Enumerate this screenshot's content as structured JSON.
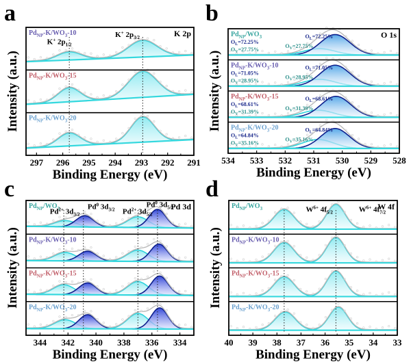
{
  "chart_data": [
    {
      "id": "a",
      "type": "line",
      "panel_letter": "a",
      "title": "K 2p",
      "xlabel": "Binding Energy (eV)",
      "ylabel": "Intensity (a.u.)",
      "xlim": [
        297.4,
        291
      ],
      "xticks": [
        297,
        296,
        295,
        294,
        293,
        292,
        291
      ],
      "reference_lines": [
        295.75,
        292.95
      ],
      "peak_labels": [
        {
          "sup": "+",
          "base": "K",
          "text": " 2p",
          "sub": "1/2",
          "x": 296.6,
          "row": 0,
          "h": 0.62
        },
        {
          "sup": "+",
          "base": "K",
          "text": " 2p",
          "sub": "3/2",
          "x": 294.0,
          "row": 0,
          "h": 0.82
        }
      ],
      "series": [
        {
          "name": "PdNP-K/WO3-10",
          "label_base": "Pd",
          "label_sub": "NP",
          "label_rest": "-K/WO",
          "label_sub2": "3",
          "label_tail": "-10",
          "label_color": "#6a5fb0",
          "baseline": [
            0.15,
            0.33
          ],
          "peaks": [
            {
              "center": 295.75,
              "height": 0.22,
              "width": 0.45,
              "color": "#2fd3dc",
              "fill": "cyan"
            },
            {
              "center": 292.95,
              "height": 0.45,
              "width": 0.55,
              "color": "#2fd3dc",
              "fill": "cyan"
            }
          ]
        },
        {
          "name": "PdNP-K/WO3-15",
          "label_base": "Pd",
          "label_sub": "NP",
          "label_rest": "-K/WO",
          "label_sub2": "3",
          "label_tail": "-15",
          "label_color": "#c2606b",
          "baseline": [
            0.15,
            0.42
          ],
          "peaks": [
            {
              "center": 295.75,
              "height": 0.38,
              "width": 0.42,
              "color": "#2fd3dc",
              "fill": "cyan"
            },
            {
              "center": 292.95,
              "height": 0.7,
              "width": 0.55,
              "color": "#2fd3dc",
              "fill": "cyan"
            }
          ]
        },
        {
          "name": "PdNP-K/WO3-20",
          "label_base": "Pd",
          "label_sub": "NP",
          "label_rest": "-K/WO",
          "label_sub2": "3",
          "label_tail": "-20",
          "label_color": "#6ea3d0",
          "baseline": [
            0.12,
            0.35
          ],
          "peaks": [
            {
              "center": 295.75,
              "height": 0.35,
              "width": 0.42,
              "color": "#2fd3dc",
              "fill": "cyan"
            },
            {
              "center": 292.95,
              "height": 0.68,
              "width": 0.45,
              "color": "#2fd3dc",
              "fill": "cyan"
            }
          ]
        }
      ]
    },
    {
      "id": "b",
      "type": "line",
      "panel_letter": "b",
      "title": "O 1s",
      "xlabel": "Binding Energy (eV)",
      "ylabel": "",
      "xlim": [
        534,
        528
      ],
      "xticks": [
        534,
        533,
        532,
        531,
        530,
        529,
        528
      ],
      "reference_lines": [],
      "series": [
        {
          "name": "PdNP/WO3",
          "label_base": "Pd",
          "label_sub": "NP",
          "label_rest": "/WO",
          "label_sub2": "3",
          "label_tail": "",
          "label_color": "#3aa6a0",
          "OL": "72.25%",
          "OV": "27.75%",
          "baseline": [
            0.08,
            0.08
          ],
          "peaks": [
            {
              "center": 530.8,
              "height": 0.25,
              "width": 0.55,
              "color": "#2fd3dc",
              "fill": "none"
            },
            {
              "center": 530.25,
              "height": 0.8,
              "width": 0.52,
              "color": "#0d1f8c",
              "fill": "blue"
            }
          ]
        },
        {
          "name": "PdNP-K/WO3-10",
          "label_base": "Pd",
          "label_sub": "NP",
          "label_rest": "-K/WO",
          "label_sub2": "3",
          "label_tail": "-10",
          "label_color": "#6a5fb0",
          "OL": "71.05%",
          "OV": "28.95%",
          "baseline": [
            0.08,
            0.08
          ],
          "peaks": [
            {
              "center": 530.8,
              "height": 0.27,
              "width": 0.55,
              "color": "#2fd3dc",
              "fill": "none"
            },
            {
              "center": 530.25,
              "height": 0.82,
              "width": 0.52,
              "color": "#0d1f8c",
              "fill": "blue"
            }
          ]
        },
        {
          "name": "PdNP-K/WO3-15",
          "label_base": "Pd",
          "label_sub": "NP",
          "label_rest": "-K/WO",
          "label_sub2": "3",
          "label_tail": "-15",
          "label_color": "#c2606b",
          "OL": "68.61%",
          "OV": "31.39%",
          "baseline": [
            0.08,
            0.08
          ],
          "peaks": [
            {
              "center": 530.85,
              "height": 0.28,
              "width": 0.55,
              "color": "#2fd3dc",
              "fill": "none"
            },
            {
              "center": 530.22,
              "height": 0.82,
              "width": 0.52,
              "color": "#0d1f8c",
              "fill": "blue"
            }
          ]
        },
        {
          "name": "PdNP-K/WO3-20",
          "label_base": "Pd",
          "label_sub": "NP",
          "label_rest": "-K/WO",
          "label_sub2": "3",
          "label_tail": "-20",
          "label_color": "#6ea3d0",
          "OL": "64.84%",
          "OV": "35.16%",
          "baseline": [
            0.08,
            0.08
          ],
          "peaks": [
            {
              "center": 530.85,
              "height": 0.35,
              "width": 0.55,
              "color": "#2fd3dc",
              "fill": "none"
            },
            {
              "center": 530.25,
              "height": 0.78,
              "width": 0.5,
              "color": "#0d1f8c",
              "fill": "blue"
            }
          ]
        }
      ]
    },
    {
      "id": "c",
      "type": "line",
      "panel_letter": "c",
      "title": "Pd 3d",
      "xlabel": "Binding Energy (eV)",
      "ylabel": "Intensity (a.u.)",
      "xlim": [
        345,
        333
      ],
      "xticks": [
        344,
        342,
        340,
        338,
        336,
        334
      ],
      "reference_lines": [
        342.3,
        340.9,
        337.0,
        335.6
      ],
      "peak_labels": [
        {
          "sup": "2+",
          "base": "Pd",
          "text": " 3d",
          "sub": "3/2",
          "x": 343.3,
          "row": 0,
          "h": 0.62
        },
        {
          "sup": "0",
          "base": "Pd",
          "text": " 3d",
          "sub": "3/2",
          "x": 340.6,
          "row": 0,
          "h": 0.8
        },
        {
          "sup": "2+",
          "base": "Pd",
          "text": " 3d",
          "sub": "5/2",
          "x": 338.1,
          "row": 0,
          "h": 0.62
        },
        {
          "sup": "0",
          "base": "Pd",
          "text": " 3d",
          "sub": "5/2",
          "x": 336.4,
          "row": 0,
          "h": 0.87
        }
      ],
      "series": [
        {
          "name": "PdNP/WO3",
          "label_base": "Pd",
          "label_sub": "NP",
          "label_rest": "/WO",
          "label_sub2": "3",
          "label_tail": "",
          "label_color": "#3aa6a0",
          "baseline": [
            0.18,
            0.12
          ],
          "peaks": [
            {
              "center": 342.2,
              "height": 0.22,
              "width": 0.75,
              "color": "#2fd3dc",
              "fill": "cyan"
            },
            {
              "center": 340.8,
              "height": 0.4,
              "width": 0.62,
              "color": "#0d1f8c",
              "fill": "blue"
            },
            {
              "center": 337.0,
              "height": 0.38,
              "width": 0.75,
              "color": "#2fd3dc",
              "fill": "cyan"
            },
            {
              "center": 335.6,
              "height": 0.65,
              "width": 0.6,
              "color": "#0d1f8c",
              "fill": "blue"
            }
          ]
        },
        {
          "name": "PdNP-K/WO3-10",
          "label_base": "Pd",
          "label_sub": "NP",
          "label_rest": "-K/WO",
          "label_sub2": "3",
          "label_tail": "-10",
          "label_color": "#6a5fb0",
          "baseline": [
            0.16,
            0.12
          ],
          "peaks": [
            {
              "center": 342.2,
              "height": 0.3,
              "width": 0.75,
              "color": "#2fd3dc",
              "fill": "cyan"
            },
            {
              "center": 340.6,
              "height": 0.35,
              "width": 0.62,
              "color": "#0d1f8c",
              "fill": "blue"
            },
            {
              "center": 337.0,
              "height": 0.4,
              "width": 0.75,
              "color": "#2fd3dc",
              "fill": "cyan"
            },
            {
              "center": 335.5,
              "height": 0.62,
              "width": 0.6,
              "color": "#0d1f8c",
              "fill": "blue"
            }
          ]
        },
        {
          "name": "PdNP-K/WO3-15",
          "label_base": "Pd",
          "label_sub": "NP",
          "label_rest": "-K/WO",
          "label_sub2": "3",
          "label_tail": "-15",
          "label_color": "#c2606b",
          "baseline": [
            0.16,
            0.12
          ],
          "peaks": [
            {
              "center": 342.3,
              "height": 0.35,
              "width": 0.75,
              "color": "#2fd3dc",
              "fill": "cyan"
            },
            {
              "center": 340.6,
              "height": 0.42,
              "width": 0.62,
              "color": "#0d1f8c",
              "fill": "blue"
            },
            {
              "center": 337.0,
              "height": 0.48,
              "width": 0.75,
              "color": "#2fd3dc",
              "fill": "cyan"
            },
            {
              "center": 335.45,
              "height": 0.68,
              "width": 0.6,
              "color": "#0d1f8c",
              "fill": "blue"
            }
          ]
        },
        {
          "name": "PdNP-K/WO3-20",
          "label_base": "Pd",
          "label_sub": "NP",
          "label_rest": "-K/WO",
          "label_sub2": "3",
          "label_tail": "-20",
          "label_color": "#6ea3d0",
          "baseline": [
            0.14,
            0.12
          ],
          "peaks": [
            {
              "center": 342.2,
              "height": 0.32,
              "width": 0.75,
              "color": "#2fd3dc",
              "fill": "cyan"
            },
            {
              "center": 340.6,
              "height": 0.5,
              "width": 0.62,
              "color": "#0d1f8c",
              "fill": "blue"
            },
            {
              "center": 337.0,
              "height": 0.55,
              "width": 0.75,
              "color": "#2fd3dc",
              "fill": "cyan"
            },
            {
              "center": 335.45,
              "height": 0.75,
              "width": 0.6,
              "color": "#0d1f8c",
              "fill": "blue"
            }
          ]
        }
      ]
    },
    {
      "id": "d",
      "type": "line",
      "panel_letter": "d",
      "title": "W 4f",
      "xlabel": "Binding Energy (eV)",
      "ylabel": "",
      "xlim": [
        40,
        33
      ],
      "xticks": [
        40,
        39,
        38,
        37,
        36,
        35,
        34,
        33
      ],
      "reference_lines": [
        37.7,
        35.55
      ],
      "peak_labels": [
        {
          "sup": "6+",
          "base": "W",
          "text": " 4f",
          "sub": "5/2",
          "x": 36.8,
          "row": 0,
          "h": 0.7
        },
        {
          "sup": "6+",
          "base": "W",
          "text": " 4f",
          "sub": "7/2",
          "x": 34.6,
          "row": 0,
          "h": 0.7
        }
      ],
      "series": [
        {
          "name": "PdNP/WO3",
          "label_base": "Pd",
          "label_sub": "NP",
          "label_rest": "/WO",
          "label_sub2": "3",
          "label_tail": "",
          "label_color": "#3aa6a0",
          "baseline": [
            0.08,
            0.08
          ],
          "peaks": [
            {
              "center": 37.7,
              "height": 0.7,
              "width": 0.42,
              "color": "#2fd3dc",
              "fill": "cyan"
            },
            {
              "center": 35.55,
              "height": 0.88,
              "width": 0.38,
              "color": "#2fd3dc",
              "fill": "cyan"
            }
          ]
        },
        {
          "name": "PdNP-K/WO3-10",
          "label_base": "Pd",
          "label_sub": "NP",
          "label_rest": "-K/WO",
          "label_sub2": "3",
          "label_tail": "-10",
          "label_color": "#6a5fb0",
          "baseline": [
            0.08,
            0.08
          ],
          "peaks": [
            {
              "center": 37.7,
              "height": 0.72,
              "width": 0.42,
              "color": "#2fd3dc",
              "fill": "cyan"
            },
            {
              "center": 35.55,
              "height": 0.9,
              "width": 0.38,
              "color": "#2fd3dc",
              "fill": "cyan"
            }
          ]
        },
        {
          "name": "PdNP-K/WO3-15",
          "label_base": "Pd",
          "label_sub": "NP",
          "label_rest": "-K/WO",
          "label_sub2": "3",
          "label_tail": "-15",
          "label_color": "#c2606b",
          "baseline": [
            0.08,
            0.08
          ],
          "peaks": [
            {
              "center": 37.7,
              "height": 0.7,
              "width": 0.42,
              "color": "#2fd3dc",
              "fill": "cyan"
            },
            {
              "center": 35.55,
              "height": 0.9,
              "width": 0.38,
              "color": "#2fd3dc",
              "fill": "cyan"
            }
          ]
        },
        {
          "name": "PdNP-K/WO3-20",
          "label_base": "Pd",
          "label_sub": "NP",
          "label_rest": "-K/WO",
          "label_sub2": "3",
          "label_tail": "-20",
          "label_color": "#6ea3d0",
          "baseline": [
            0.08,
            0.08
          ],
          "peaks": [
            {
              "center": 37.65,
              "height": 0.65,
              "width": 0.42,
              "color": "#2fd3dc",
              "fill": "cyan"
            },
            {
              "center": 35.45,
              "height": 0.82,
              "width": 0.38,
              "color": "#2fd3dc",
              "fill": "cyan"
            }
          ]
        }
      ]
    }
  ]
}
